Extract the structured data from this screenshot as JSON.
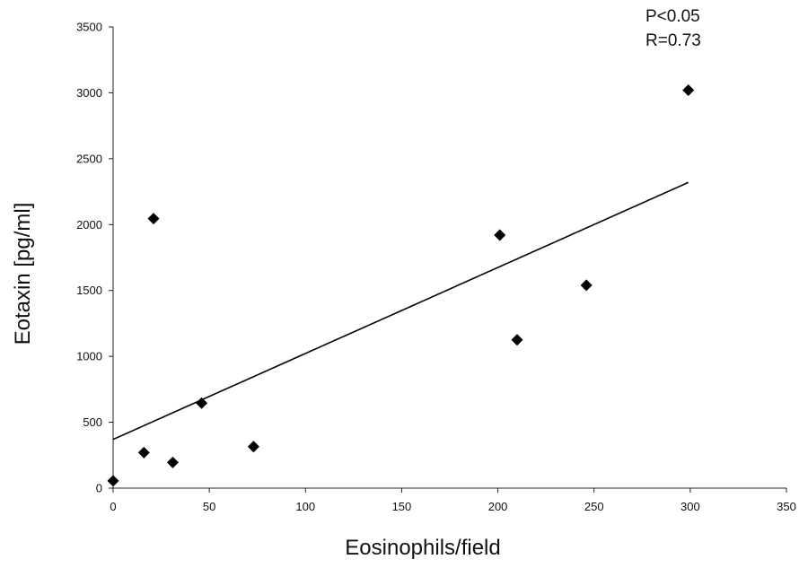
{
  "chart_data": {
    "type": "scatter",
    "xlabel": "Eosinophils/field",
    "ylabel": "Eotaxin [pg/ml]",
    "xlim": [
      0,
      350
    ],
    "ylim": [
      0,
      3500
    ],
    "x_ticks": [
      0,
      50,
      100,
      150,
      200,
      250,
      300,
      350
    ],
    "y_ticks": [
      0,
      500,
      1000,
      1500,
      2000,
      2500,
      3000,
      3500
    ],
    "grid": false,
    "marker": "diamond",
    "marker_color": "#000000",
    "points": [
      {
        "x": 0,
        "y": 55
      },
      {
        "x": 16,
        "y": 270
      },
      {
        "x": 21,
        "y": 2045
      },
      {
        "x": 31,
        "y": 195
      },
      {
        "x": 46,
        "y": 645
      },
      {
        "x": 73,
        "y": 315
      },
      {
        "x": 201,
        "y": 1920
      },
      {
        "x": 210,
        "y": 1125
      },
      {
        "x": 246,
        "y": 1540
      },
      {
        "x": 299,
        "y": 3020
      }
    ],
    "trendline": {
      "x0": 0,
      "y0": 370,
      "x1": 299,
      "y1": 2320
    },
    "annotations": [
      "P<0.05",
      "R=0.73"
    ]
  }
}
